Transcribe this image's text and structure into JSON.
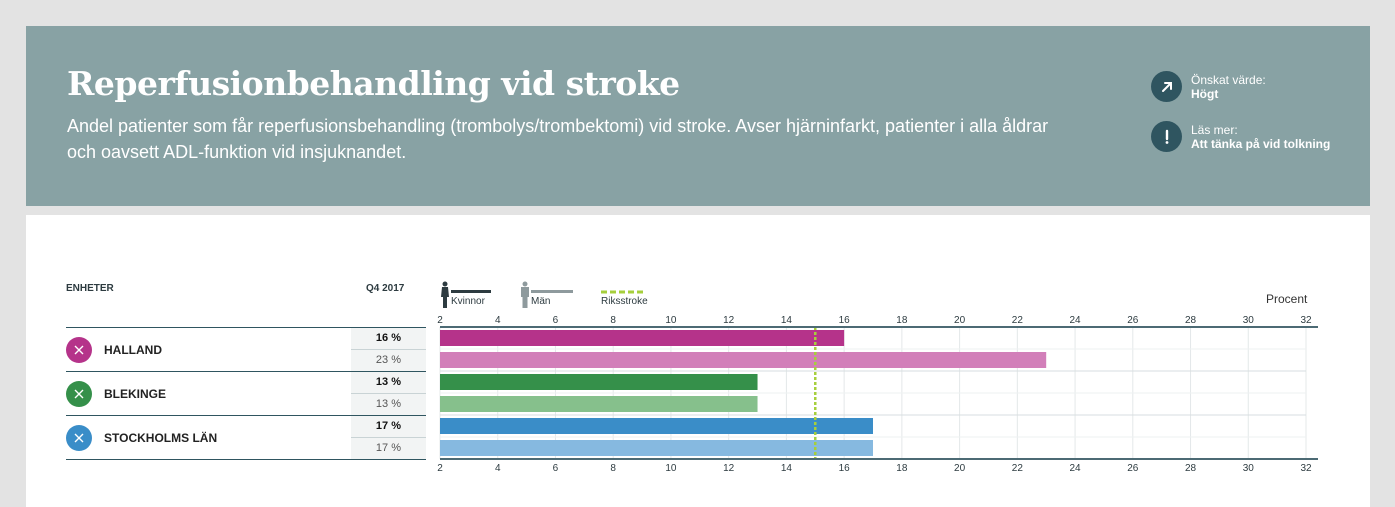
{
  "header": {
    "title": "Reperfusionbehandling vid stroke",
    "subtitle": "Andel patienter som får reperfusionsbehandling (trombolys/trombektomi) vid stroke. Avser hjärninfarkt, patienter i alla åldrar och oavsett ADL-funktion vid insjuknandet.",
    "desired_label": "Önskat värde:",
    "desired_value": "Högt",
    "read_more_label": "Läs mer:",
    "read_more_link": "Att tänka på vid tolkning"
  },
  "table": {
    "units_header": "ENHETER",
    "period_header": "Q4 2017",
    "rows": [
      {
        "name": "HALLAND",
        "women": "16 %",
        "men": "23 %",
        "color": "#b5338a"
      },
      {
        "name": "BLEKINGE",
        "women": "13 %",
        "men": "13 %",
        "color": "#35904a"
      },
      {
        "name": "STOCKHOLMS LÄN",
        "women": "17 %",
        "men": "17 %",
        "color": "#3a8dc8"
      }
    ]
  },
  "legend": {
    "women": "Kvinnor",
    "men": "Män",
    "reference": "Riksstroke"
  },
  "chart_data": {
    "type": "bar",
    "orientation": "horizontal",
    "unit_label": "Procent",
    "xlim": [
      2,
      32
    ],
    "ticks": [
      2,
      4,
      6,
      8,
      10,
      12,
      14,
      16,
      18,
      20,
      22,
      24,
      26,
      28,
      30,
      32
    ],
    "reference_value": 15,
    "reference_name": "Riksstroke",
    "reference_color": "#a6cf3c",
    "categories": [
      "HALLAND",
      "BLEKINGE",
      "STOCKHOLMS LÄN"
    ],
    "series": [
      {
        "name": "Kvinnor",
        "values": [
          16,
          13,
          17
        ],
        "colors": [
          "#b5338a",
          "#35904a",
          "#3a8dc8"
        ]
      },
      {
        "name": "Män",
        "values": [
          23,
          13,
          17
        ],
        "colors": [
          "#d27fb9",
          "#86c08c",
          "#86b9e0"
        ]
      }
    ],
    "grid": true
  }
}
